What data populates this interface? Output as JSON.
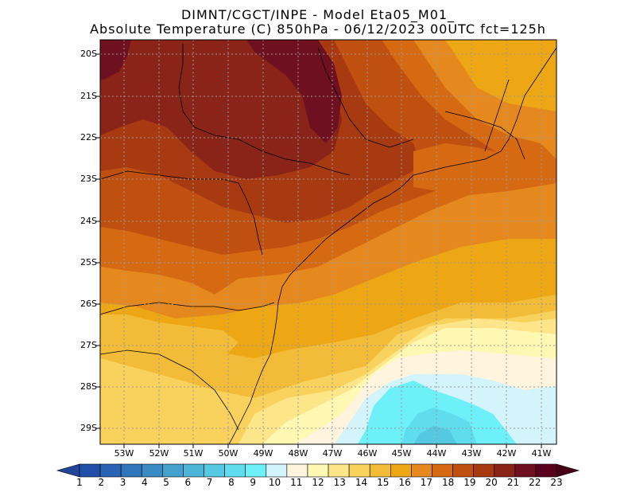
{
  "title_line1": "DIMNT/CGCT/INPE -  Model Eta05_M01_",
  "title_line2": "Absolute Temperature (C) 850hPa -  06/12/2023 00UTC fct=125h",
  "lat_labels": [
    "20S",
    "21S",
    "22S",
    "23S",
    "24S",
    "25S",
    "26S",
    "27S",
    "28S",
    "29S"
  ],
  "lon_labels": [
    "53W",
    "52W",
    "51W",
    "50W",
    "49W",
    "48W",
    "47W",
    "46W",
    "45W",
    "44W",
    "43W",
    "42W",
    "41W"
  ],
  "colorbar": {
    "labels": [
      "1",
      "2",
      "3",
      "4",
      "5",
      "6",
      "7",
      "8",
      "9",
      "10",
      "11",
      "12",
      "13",
      "14",
      "15",
      "16",
      "17",
      "18",
      "19",
      "20",
      "21",
      "22",
      "23"
    ],
    "colors": [
      "#22449a",
      "#1f4fa8",
      "#2a62b4",
      "#3176bb",
      "#3a8ac4",
      "#44a0cd",
      "#4cb5d7",
      "#55c9e2",
      "#5fdced",
      "#6ef0f8",
      "#d2f4fa",
      "#fff5de",
      "#fff8b2",
      "#fde68a",
      "#f8d25c",
      "#f2bc38",
      "#eda614",
      "#e5891e",
      "#d66a12",
      "#c05010",
      "#a83a12",
      "#8a2418",
      "#6e1020",
      "#5a001e",
      "#480016"
    ]
  },
  "map": {
    "levels": [
      11,
      12,
      13,
      14,
      15,
      16,
      17,
      18,
      19,
      20,
      21,
      22
    ],
    "colors": {
      "11": "#d2f4fa",
      "12": "#fff5de",
      "13": "#fff8b2",
      "14": "#fde68a",
      "15": "#f8d25c",
      "16": "#f2bc38",
      "17": "#eda614",
      "18": "#e5891e",
      "19": "#d66a12",
      "20": "#c05010",
      "21": "#a83a12",
      "22": "#8a2418",
      "8": "#55c9e2",
      "9": "#5fdced",
      "10": "#6ef0f8"
    }
  }
}
